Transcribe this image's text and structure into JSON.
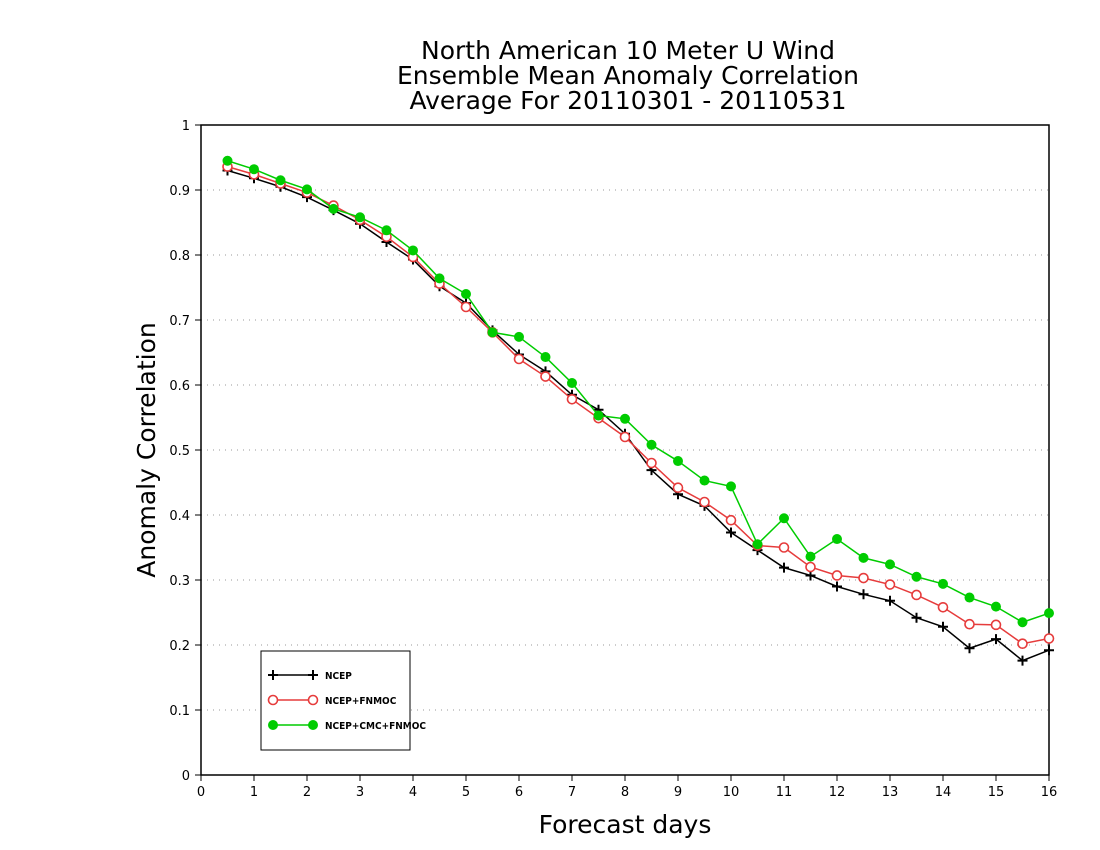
{
  "chart_data": {
    "type": "line",
    "title": [
      "North American 10 Meter U Wind",
      "Ensemble Mean Anomaly Correlation",
      "Average For 20110301 - 20110531"
    ],
    "xlabel": "Forecast days",
    "ylabel": "Anomaly Correlation",
    "xlim": [
      0,
      16
    ],
    "ylim": [
      0,
      1
    ],
    "x_ticks": [
      "0",
      "1",
      "2",
      "3",
      "4",
      "5",
      "6",
      "7",
      "8",
      "9",
      "10",
      "11",
      "12",
      "13",
      "14",
      "15",
      "16"
    ],
    "y_ticks": [
      "0",
      "0.1",
      "0.2",
      "0.3",
      "0.4",
      "0.5",
      "0.6",
      "0.7",
      "0.8",
      "0.9",
      "1"
    ],
    "grid": "dotted horizontal",
    "legend_placement": "bottom-left",
    "x": [
      0.5,
      1,
      1.5,
      2,
      2.5,
      3,
      3.5,
      4,
      4.5,
      5,
      5.5,
      6,
      6.5,
      7,
      7.5,
      8,
      8.5,
      9,
      9.5,
      10,
      10.5,
      11,
      11.5,
      12,
      12.5,
      13,
      13.5,
      14,
      14.5,
      15,
      15.5,
      16
    ],
    "series": [
      {
        "name": "NCEP",
        "color": "#000000",
        "marker": "plus",
        "values": [
          0.93,
          0.918,
          0.905,
          0.889,
          0.869,
          0.848,
          0.82,
          0.793,
          0.752,
          0.726,
          0.684,
          0.647,
          0.621,
          0.585,
          0.562,
          0.525,
          0.469,
          0.432,
          0.414,
          0.373,
          0.346,
          0.319,
          0.307,
          0.29,
          0.278,
          0.268,
          0.242,
          0.228,
          0.195,
          0.209,
          0.176,
          0.192
        ]
      },
      {
        "name": "NCEP+FNMOC",
        "color": "#e63c3c",
        "marker": "open-circle",
        "values": [
          0.936,
          0.924,
          0.91,
          0.896,
          0.876,
          0.854,
          0.828,
          0.797,
          0.756,
          0.72,
          0.681,
          0.64,
          0.613,
          0.578,
          0.549,
          0.52,
          0.48,
          0.442,
          0.42,
          0.392,
          0.353,
          0.35,
          0.32,
          0.307,
          0.303,
          0.293,
          0.277,
          0.258,
          0.232,
          0.231,
          0.202,
          0.21
        ]
      },
      {
        "name": "NCEP+CMC+FNMOC",
        "color": "#00cc00",
        "marker": "filled-circle",
        "values": [
          0.945,
          0.932,
          0.915,
          0.901,
          0.871,
          0.858,
          0.838,
          0.807,
          0.764,
          0.74,
          0.681,
          0.674,
          0.643,
          0.603,
          0.553,
          0.548,
          0.508,
          0.483,
          0.453,
          0.444,
          0.355,
          0.395,
          0.336,
          0.363,
          0.334,
          0.324,
          0.305,
          0.294,
          0.273,
          0.259,
          0.235,
          0.249
        ]
      }
    ]
  }
}
